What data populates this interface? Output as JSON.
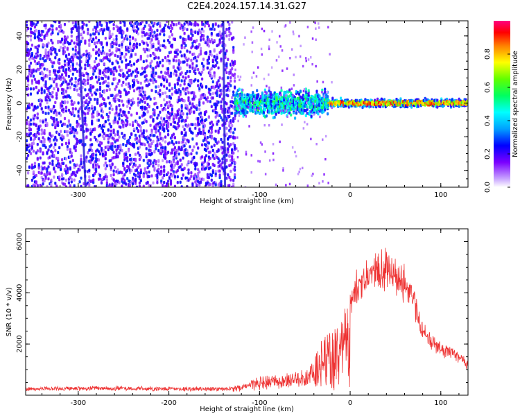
{
  "title": "C2E4.2024.157.14.31.G27",
  "chart_data": [
    {
      "type": "heatmap",
      "xlabel": "Height of straight line (km)",
      "ylabel": "Frequency (Hz)",
      "xlim": [
        -358,
        130
      ],
      "ylim": [
        -50,
        49
      ],
      "xticks": [
        -300,
        -200,
        -100,
        0,
        100
      ],
      "yticks": [
        -40,
        -20,
        0,
        20,
        40
      ],
      "colorbar": {
        "label": "Normalized spectral amplitude",
        "range": [
          0.0,
          1.0
        ],
        "ticks": [
          "0.0",
          "0.2",
          "0.4",
          "0.6",
          "0.8"
        ],
        "colormap": "rainbow"
      },
      "regions": [
        {
          "x_range": [
            -358,
            -128
          ],
          "description": "broadband noise",
          "amplitude": 0.15,
          "freq_span": [
            -50,
            49
          ]
        },
        {
          "x_range": [
            -128,
            -25
          ],
          "description": "blob",
          "amplitude": 0.4,
          "freq_span": [
            -10,
            10
          ]
        },
        {
          "x_range": [
            -25,
            130
          ],
          "description": "line",
          "amplitude": 0.85,
          "freq_span": [
            -3,
            3
          ]
        }
      ],
      "streaks": [
        {
          "x_top": -300,
          "x_bottom": -292
        },
        {
          "x_top": -140,
          "x_bottom": -138
        }
      ]
    },
    {
      "type": "line",
      "xlabel": "Height of straight line (km)",
      "ylabel": "SNR (10 * v/v)",
      "xlim": [
        -358,
        130
      ],
      "ylim": [
        0,
        6500
      ],
      "xticks": [
        -300,
        -200,
        -100,
        0,
        100
      ],
      "yticks": [
        2000,
        4000,
        6000
      ],
      "color": "#ee3333",
      "envelope": {
        "x": [
          -358,
          -300,
          -200,
          -140,
          -120,
          -100,
          -80,
          -60,
          -45,
          -35,
          -20,
          -10,
          0,
          10,
          20,
          30,
          40,
          50,
          60,
          70,
          80,
          90,
          100,
          115,
          130
        ],
        "y": [
          300,
          350,
          320,
          300,
          400,
          700,
          800,
          850,
          1000,
          2000,
          2600,
          2900,
          4000,
          4700,
          5200,
          5500,
          5400,
          5000,
          4700,
          4200,
          2800,
          2300,
          2000,
          1800,
          1300
        ]
      }
    }
  ]
}
